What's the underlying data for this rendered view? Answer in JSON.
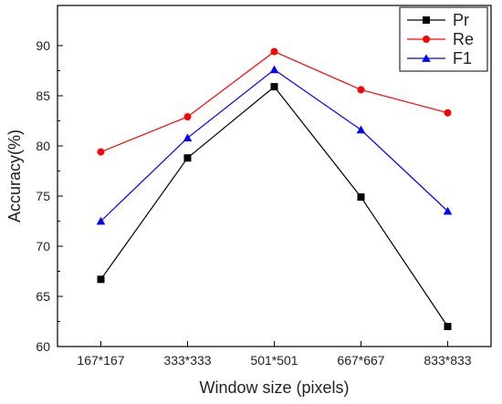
{
  "chart_data": {
    "type": "line",
    "xlabel": "Window size (pixels)",
    "ylabel": "Accuracy(%)",
    "categories": [
      "167*167",
      "333*333",
      "501*501",
      "667*667",
      "833*833"
    ],
    "ylim": [
      60,
      94
    ],
    "yticks": [
      60,
      65,
      70,
      75,
      80,
      85,
      90
    ],
    "grid": false,
    "legend_position": "top-right",
    "series": [
      {
        "name": "Pr",
        "color": "#000000",
        "marker": "square",
        "values": [
          66.7,
          78.8,
          85.9,
          74.9,
          62.0
        ]
      },
      {
        "name": "Re",
        "color": "#ff0000",
        "marker": "circle",
        "values": [
          79.4,
          82.9,
          89.4,
          85.6,
          83.3
        ]
      },
      {
        "name": "F1",
        "color": "#0000ff",
        "marker": "triangle",
        "values": [
          72.5,
          80.8,
          87.6,
          81.6,
          73.5
        ]
      }
    ]
  }
}
